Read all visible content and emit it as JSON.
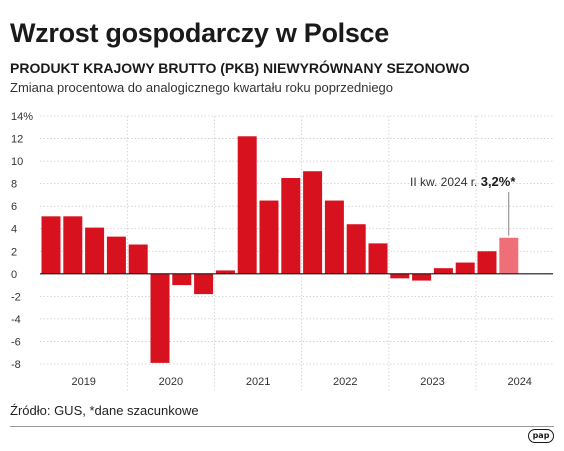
{
  "header": {
    "title": "Wzrost gospodarczy w Polsce",
    "subtitle": "PRODUKT KRAJOWY BRUTTO (PKB) NIEWYRÓWNANY SEZONOWO",
    "description": "Zmiana procentowa do analogicznego kwartału roku poprzedniego"
  },
  "footer": {
    "source": "Źródło: GUS, *dane szacunkowe",
    "logo": "pap"
  },
  "colors": {
    "bar": "#d7121e",
    "highlight": "#ee6f78",
    "grid": "#cccccc",
    "axis": "#1a1a1a"
  },
  "chart_data": {
    "type": "bar",
    "title": "Wzrost gospodarczy w Polsce",
    "xlabel": "",
    "ylabel": "",
    "ylim": [
      -8,
      14
    ],
    "yticks": [
      "14%",
      "12",
      "10",
      "8",
      "6",
      "4",
      "2",
      "0",
      "-2",
      "-4",
      "-6",
      "-8"
    ],
    "ytick_values": [
      14,
      12,
      10,
      8,
      6,
      4,
      2,
      0,
      -2,
      -4,
      -6,
      -8
    ],
    "years": [
      "2019",
      "2020",
      "2021",
      "2022",
      "2023",
      "2024"
    ],
    "categories": [
      "2019 I",
      "2019 II",
      "2019 III",
      "2019 IV",
      "2020 I",
      "2020 II",
      "2020 III",
      "2020 IV",
      "2021 I",
      "2021 II",
      "2021 III",
      "2021 IV",
      "2022 I",
      "2022 II",
      "2022 III",
      "2022 IV",
      "2023 I",
      "2023 II",
      "2023 III",
      "2023 IV",
      "2024 I",
      "2024 II"
    ],
    "values": [
      5.1,
      5.1,
      4.1,
      3.3,
      2.6,
      -7.9,
      -1.0,
      -1.8,
      0.3,
      12.2,
      6.5,
      8.5,
      9.1,
      6.5,
      4.4,
      2.7,
      -0.4,
      -0.6,
      0.5,
      1.0,
      2.0,
      3.2
    ],
    "highlight_index": 21,
    "annotation": {
      "text": "II kw. 2024 r. ",
      "value": "3,2%*"
    },
    "grid": true
  }
}
